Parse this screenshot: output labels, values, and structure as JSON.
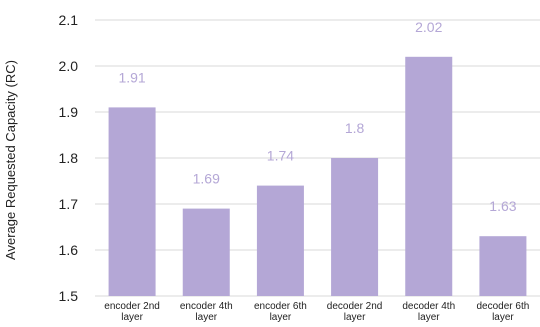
{
  "chart_data": {
    "type": "bar",
    "categories": [
      [
        "encoder 2nd",
        "layer"
      ],
      [
        "encoder 4th",
        "layer"
      ],
      [
        "encoder 6th",
        "layer"
      ],
      [
        "decoder 2nd",
        "layer"
      ],
      [
        "decoder 4th",
        "layer"
      ],
      [
        "decoder 6th",
        "layer"
      ]
    ],
    "values": [
      1.91,
      1.69,
      1.74,
      1.8,
      2.02,
      1.63
    ],
    "data_labels": [
      "1.91",
      "1.69",
      "1.74",
      "1.8",
      "2.02",
      "1.63"
    ],
    "title": "",
    "xlabel": "",
    "ylabel": "Average Requested Capacity (RC)",
    "ylim": [
      1.5,
      2.1
    ],
    "yticks": [
      "1.5",
      "1.6",
      "1.7",
      "1.8",
      "1.9",
      "2.0",
      "2.1"
    ],
    "grid": true,
    "legend": "none",
    "colors": {
      "bar": "#b4a7d6",
      "label": "#b4a7d6",
      "grid": "#d9d9d9",
      "text": "#222222"
    }
  }
}
